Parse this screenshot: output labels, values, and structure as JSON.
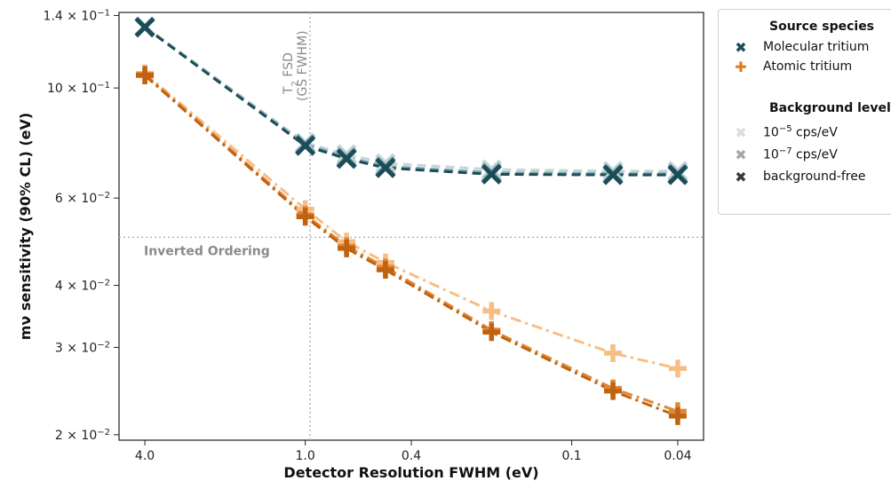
{
  "chart_data": {
    "type": "line",
    "xlabel": "Detector Resolution FWHM (eV)",
    "ylabel": "mν sensitivity (90% CL) (eV)",
    "x_scale": "log-reversed",
    "y_scale": "log",
    "xlim": [
      5.0,
      0.032
    ],
    "ylim": [
      0.0195,
      0.142
    ],
    "x_ticks": [
      {
        "value": 4.0,
        "label": "4.0"
      },
      {
        "value": 1.0,
        "label": "1.0"
      },
      {
        "value": 0.4,
        "label": "0.4"
      },
      {
        "value": 0.1,
        "label": "0.1"
      },
      {
        "value": 0.04,
        "label": "0.04"
      }
    ],
    "y_ticks": [
      {
        "value": 0.14,
        "mant": "1.4",
        "exp": "−1"
      },
      {
        "value": 0.1,
        "mant": "10",
        "exp": "−1"
      },
      {
        "value": 0.06,
        "mant": "6",
        "exp": "−2"
      },
      {
        "value": 0.04,
        "mant": "4",
        "exp": "−2"
      },
      {
        "value": 0.03,
        "mant": "3",
        "exp": "−2"
      },
      {
        "value": 0.02,
        "mant": "2",
        "exp": "−2"
      }
    ],
    "times_symbol": "×",
    "x": [
      4.0,
      1.0,
      0.7,
      0.5,
      0.2,
      0.07,
      0.04
    ],
    "series": [
      {
        "species": "Molecular tritium",
        "background": "10⁻⁵ cps/eV",
        "marker": "x",
        "color": "#c2d6d8",
        "dash": "dashed",
        "values": [
          0.133,
          0.0775,
          0.0735,
          0.0705,
          0.0685,
          0.068,
          0.068
        ]
      },
      {
        "species": "Molecular tritium",
        "background": "10⁻⁷ cps/eV",
        "marker": "x",
        "color": "#7fa3aa",
        "dash": "dashed",
        "values": [
          0.1328,
          0.077,
          0.0725,
          0.0695,
          0.0675,
          0.0672,
          0.0672
        ]
      },
      {
        "species": "Molecular tritium",
        "background": "background-free",
        "marker": "x",
        "color": "#1b4d59",
        "dash": "dashed",
        "values": [
          0.1325,
          0.0765,
          0.072,
          0.069,
          0.067,
          0.0668,
          0.0668
        ]
      },
      {
        "species": "Atomic tritium",
        "background": "10⁻⁵ cps/eV",
        "marker": "+",
        "color": "#f6be84",
        "dash": "dashdot",
        "values": [
          0.107,
          0.057,
          0.049,
          0.0445,
          0.0355,
          0.0292,
          0.0272
        ]
      },
      {
        "species": "Atomic tritium",
        "background": "10⁻⁷ cps/eV",
        "marker": "+",
        "color": "#e0883a",
        "dash": "dashdot",
        "values": [
          0.1065,
          0.0555,
          0.048,
          0.0435,
          0.0325,
          0.0248,
          0.0223
        ]
      },
      {
        "species": "Atomic tritium",
        "background": "background-free",
        "marker": "+",
        "color": "#c0620f",
        "dash": "dashdot",
        "values": [
          0.106,
          0.055,
          0.0475,
          0.043,
          0.0322,
          0.0245,
          0.0218
        ]
      }
    ],
    "reference_lines": {
      "vertical": {
        "x": 0.96,
        "label_main": "T",
        "label_sub": "2",
        "label_rest": " FSD",
        "label_line2": "(GS FWHM)"
      },
      "horizontal": {
        "y": 0.05,
        "label": "Inverted Ordering"
      }
    },
    "legend": {
      "position": "upper-right-outside",
      "species_heading": "Source species",
      "species": [
        {
          "label": "Molecular tritium",
          "marker": "✖",
          "color": "#1b4d59"
        },
        {
          "label": "Atomic tritium",
          "marker": "✚",
          "color": "#e07a1e"
        }
      ],
      "background_heading": "Background level",
      "backgrounds": [
        {
          "base": "10",
          "exp": "−5",
          "unit": " cps/eV",
          "marker": "✖",
          "color": "#dcdcdc"
        },
        {
          "base": "10",
          "exp": "−7",
          "unit": " cps/eV",
          "marker": "✖",
          "color": "#a6a6a6"
        },
        {
          "label": "background-free",
          "marker": "✖",
          "color": "#3a3a3a"
        }
      ]
    },
    "grid": false
  }
}
